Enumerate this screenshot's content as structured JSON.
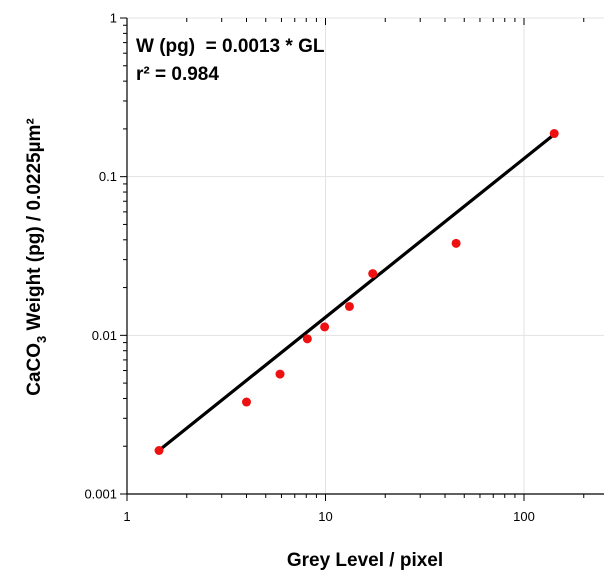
{
  "chart_data": {
    "type": "scatter",
    "xlabel": "Grey Level / pixel",
    "ylabel": {
      "prefix": "CaCO",
      "subscript": "3",
      "suffix": " Weight (pg) / 0.0225µm²"
    },
    "x_scale": "log",
    "y_scale": "log",
    "xlim": [
      1,
      250
    ],
    "ylim": [
      0.001,
      1
    ],
    "x_ticks": [
      {
        "value": 1,
        "label": "1"
      },
      {
        "value": 10,
        "label": "10"
      },
      {
        "value": 100,
        "label": "100"
      }
    ],
    "y_ticks": [
      {
        "value": 0.001,
        "label": "0.001"
      },
      {
        "value": 0.01,
        "label": "0.01"
      },
      {
        "value": 0.1,
        "label": "0.1"
      },
      {
        "value": 1,
        "label": "1"
      }
    ],
    "grid": true,
    "points": [
      {
        "x": 1.45,
        "y": 0.00188
      },
      {
        "x": 4.0,
        "y": 0.0038
      },
      {
        "x": 5.9,
        "y": 0.0057
      },
      {
        "x": 8.1,
        "y": 0.0095
      },
      {
        "x": 9.9,
        "y": 0.0113
      },
      {
        "x": 13.2,
        "y": 0.0152
      },
      {
        "x": 17.3,
        "y": 0.0245
      },
      {
        "x": 45.5,
        "y": 0.038
      },
      {
        "x": 142,
        "y": 0.187
      }
    ],
    "fit": {
      "slope": 0.0013,
      "x_range": [
        1.45,
        142
      ]
    },
    "annotations": [
      "W (pg)  = 0.0013 * GL",
      "r² = 0.984"
    ]
  }
}
